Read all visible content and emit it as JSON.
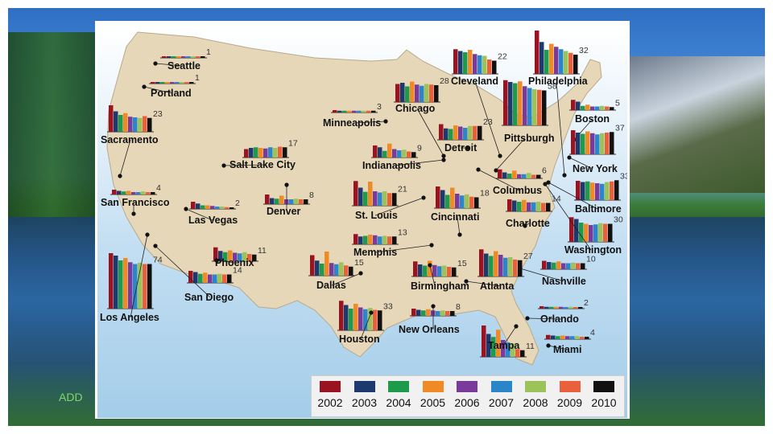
{
  "slide": {
    "footer_text": "ADD"
  },
  "legend": {
    "items": [
      {
        "year": "2002",
        "color": "#9b1220"
      },
      {
        "year": "2003",
        "color": "#1c3a6e"
      },
      {
        "year": "2004",
        "color": "#1e9a4a"
      },
      {
        "year": "2005",
        "color": "#f08a24"
      },
      {
        "year": "2006",
        "color": "#7a3a9c"
      },
      {
        "year": "2007",
        "color": "#2a86c8"
      },
      {
        "year": "2008",
        "color": "#9bc35a"
      },
      {
        "year": "2009",
        "color": "#e8603c"
      },
      {
        "year": "2010",
        "color": "#111111"
      }
    ]
  },
  "map": {
    "land_color": "#e6d7b8",
    "cities": [
      {
        "name": "Seattle",
        "value": "1",
        "values": [
          2,
          1.5,
          1.3,
          1.2,
          1,
          1,
          1.2,
          1.1,
          1
        ]
      },
      {
        "name": "Portland",
        "value": "1",
        "values": [
          1.2,
          1,
          0.9,
          1.1,
          0.8,
          0.8,
          0.9,
          1,
          0.9
        ]
      },
      {
        "name": "Sacramento",
        "value": "23",
        "values": [
          44,
          34,
          28,
          31,
          25,
          24,
          23,
          26,
          23
        ]
      },
      {
        "name": "San Francisco",
        "value": "4",
        "values": [
          8,
          6,
          5,
          6,
          4,
          4,
          5,
          4,
          4
        ]
      },
      {
        "name": "Los Angeles",
        "value": "74",
        "values": [
          92,
          88,
          80,
          84,
          77,
          74,
          76,
          74,
          74
        ]
      },
      {
        "name": "San Diego",
        "value": "14",
        "values": [
          20,
          18,
          15,
          17,
          14,
          14,
          15,
          14,
          14
        ]
      },
      {
        "name": "Las Vegas",
        "value": "2",
        "values": [
          12,
          9,
          6,
          6,
          5,
          4,
          4,
          3,
          2
        ]
      },
      {
        "name": "Phoenix",
        "value": "11",
        "values": [
          23,
          17,
          15,
          18,
          14,
          13,
          15,
          12,
          11
        ]
      },
      {
        "name": "Salt Lake City",
        "value": "17",
        "values": [
          14,
          16,
          17,
          16,
          15,
          17,
          16,
          18,
          17
        ]
      },
      {
        "name": "Denver",
        "value": "8",
        "values": [
          16,
          10,
          9,
          14,
          8,
          8,
          9,
          8,
          8
        ]
      },
      {
        "name": "Dallas",
        "value": "15",
        "values": [
          34,
          25,
          20,
          40,
          21,
          19,
          22,
          17,
          15
        ]
      },
      {
        "name": "Houston",
        "value": "33",
        "values": [
          49,
          42,
          36,
          44,
          38,
          35,
          37,
          34,
          33
        ]
      },
      {
        "name": "Minneapolis",
        "value": "3",
        "values": [
          4,
          3,
          3,
          3,
          3,
          3,
          3,
          3,
          3
        ]
      },
      {
        "name": "Chicago",
        "value": "28",
        "values": [
          30,
          32,
          26,
          34,
          29,
          27,
          30,
          29,
          28
        ]
      },
      {
        "name": "Indianapolis",
        "value": "9",
        "values": [
          20,
          17,
          11,
          23,
          14,
          12,
          13,
          10,
          9
        ]
      },
      {
        "name": "St. Louis",
        "value": "21",
        "values": [
          41,
          30,
          23,
          40,
          24,
          22,
          24,
          21,
          21
        ]
      },
      {
        "name": "Memphis",
        "value": "13",
        "values": [
          17,
          13,
          14,
          16,
          15,
          13,
          14,
          13,
          13
        ]
      },
      {
        "name": "Detroit",
        "value": "23",
        "values": [
          26,
          19,
          18,
          24,
          22,
          20,
          23,
          23,
          23
        ]
      },
      {
        "name": "Cleveland",
        "value": "22",
        "values": [
          41,
          38,
          36,
          40,
          33,
          31,
          30,
          24,
          22
        ]
      },
      {
        "name": "Pittsburgh",
        "value": "58",
        "values": [
          75,
          72,
          70,
          73,
          65,
          62,
          60,
          59,
          58
        ]
      },
      {
        "name": "Philadelphia",
        "value": "32",
        "values": [
          72,
          53,
          40,
          50,
          45,
          41,
          38,
          35,
          32
        ]
      },
      {
        "name": "Boston",
        "value": "5",
        "values": [
          17,
          14,
          7,
          9,
          6,
          6,
          7,
          6,
          5
        ]
      },
      {
        "name": "New York",
        "value": "37",
        "values": [
          40,
          36,
          34,
          38,
          35,
          33,
          35,
          36,
          37
        ]
      },
      {
        "name": "Baltimore",
        "value": "33",
        "values": [
          32,
          30,
          31,
          29,
          28,
          27,
          30,
          31,
          33
        ]
      },
      {
        "name": "Washington",
        "value": "30",
        "values": [
          41,
          38,
          32,
          30,
          28,
          29,
          31,
          30,
          30
        ]
      },
      {
        "name": "Columbus",
        "value": "6",
        "values": [
          15,
          10,
          8,
          13,
          7,
          7,
          9,
          6,
          6
        ]
      },
      {
        "name": "Cincinnati",
        "value": "18",
        "values": [
          36,
          30,
          22,
          34,
          24,
          21,
          23,
          19,
          18
        ]
      },
      {
        "name": "Charlotte",
        "value": "14",
        "values": [
          20,
          18,
          16,
          19,
          15,
          15,
          16,
          14,
          14
        ]
      },
      {
        "name": "Nashville",
        "value": "10",
        "values": [
          14,
          12,
          11,
          13,
          10,
          10,
          11,
          10,
          10
        ]
      },
      {
        "name": "Birmingham",
        "value": "15",
        "values": [
          25,
          20,
          18,
          26,
          19,
          17,
          18,
          16,
          15
        ]
      },
      {
        "name": "Atlanta",
        "value": "27",
        "values": [
          45,
          38,
          34,
          42,
          36,
          31,
          32,
          28,
          27
        ]
      },
      {
        "name": "New Orleans",
        "value": "8",
        "values": [
          12,
          10,
          9,
          11,
          9,
          8,
          9,
          8,
          8
        ]
      },
      {
        "name": "Orlando",
        "value": "2",
        "values": [
          4,
          3,
          3,
          3,
          3,
          2,
          3,
          2,
          2
        ]
      },
      {
        "name": "Tampa",
        "value": "11",
        "values": [
          52,
          38,
          33,
          45,
          28,
          24,
          22,
          13,
          11
        ]
      },
      {
        "name": "Miami",
        "value": "4",
        "values": [
          7,
          6,
          5,
          6,
          5,
          5,
          5,
          4,
          4
        ]
      }
    ]
  }
}
